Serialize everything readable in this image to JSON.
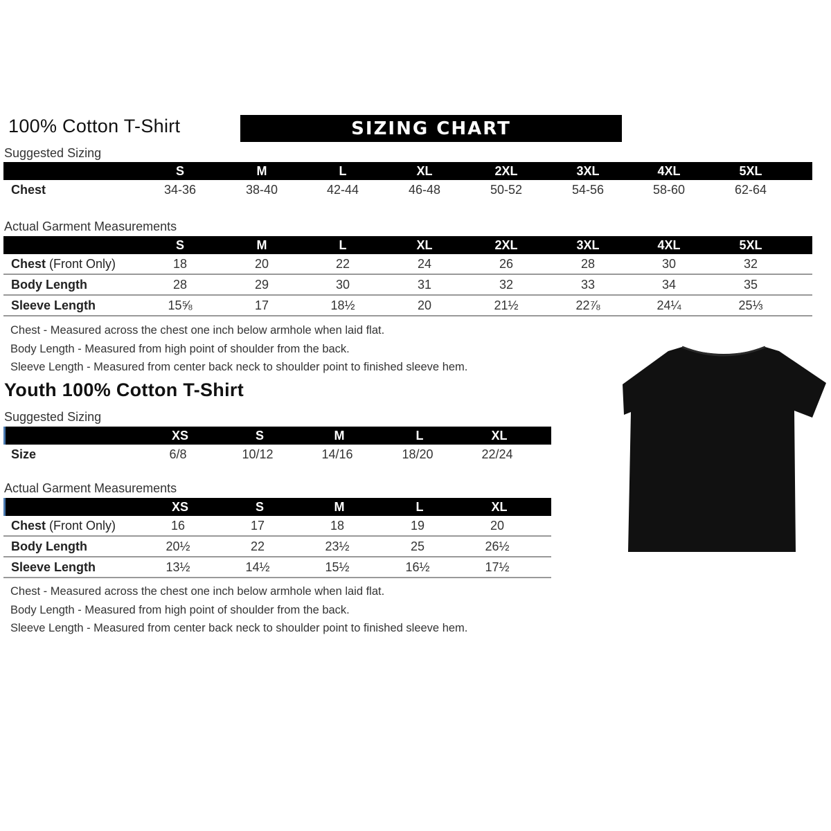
{
  "adult": {
    "title": "100% Cotton T-Shirt",
    "banner": "SIZING CHART",
    "suggested_label": "Suggested Sizing",
    "sizes": [
      "S",
      "M",
      "L",
      "XL",
      "2XL",
      "3XL",
      "4XL",
      "5XL"
    ],
    "suggested_rows": [
      {
        "label": "Chest",
        "values": [
          "34-36",
          "38-40",
          "42-44",
          "46-48",
          "50-52",
          "54-56",
          "58-60",
          "62-64"
        ]
      }
    ],
    "actual_label": "Actual Garment Measurements",
    "actual_rows": [
      {
        "label": "Chest",
        "label_suffix": " (Front Only)",
        "values": [
          "18",
          "20",
          "22",
          "24",
          "26",
          "28",
          "30",
          "32"
        ]
      },
      {
        "label": "Body Length",
        "label_suffix": "",
        "values": [
          "28",
          "29",
          "30",
          "31",
          "32",
          "33",
          "34",
          "35"
        ]
      },
      {
        "label": "Sleeve Length",
        "label_suffix": "",
        "values": [
          "15⅝",
          "17",
          "18½",
          "20",
          "21½",
          "22⅞",
          "24¼",
          "25⅓"
        ]
      }
    ],
    "notes": [
      "Chest - Measured across the chest one inch below armhole when laid flat.",
      "Body Length - Measured from high point of shoulder from the back.",
      "Sleeve Length - Measured from center back neck to shoulder point to finished sleeve hem."
    ]
  },
  "youth": {
    "title": "Youth 100% Cotton T-Shirt",
    "suggested_label": "Suggested Sizing",
    "sizes": [
      "XS",
      "S",
      "M",
      "L",
      "XL"
    ],
    "suggested_rows": [
      {
        "label": "Size",
        "values": [
          "6/8",
          "10/12",
          "14/16",
          "18/20",
          "22/24"
        ]
      }
    ],
    "actual_label": "Actual Garment Measurements",
    "actual_rows": [
      {
        "label": "Chest",
        "label_suffix": " (Front Only)",
        "values": [
          "16",
          "17",
          "18",
          "19",
          "20"
        ]
      },
      {
        "label": "Body Length",
        "label_suffix": "",
        "values": [
          "20½",
          "22",
          "23½",
          "25",
          "26½"
        ]
      },
      {
        "label": "Sleeve Length",
        "label_suffix": "",
        "values": [
          "13½",
          "14½",
          "15½",
          "16½",
          "17½"
        ]
      }
    ],
    "notes": [
      "Chest - Measured across the chest one inch below armhole when laid flat.",
      "Body Length - Measured from high point of shoulder from the back.",
      "Sleeve Length - Measured from center back neck to shoulder point to finished sleeve hem."
    ]
  },
  "image": {
    "icon": "black-tshirt-icon",
    "color": "#111111"
  }
}
